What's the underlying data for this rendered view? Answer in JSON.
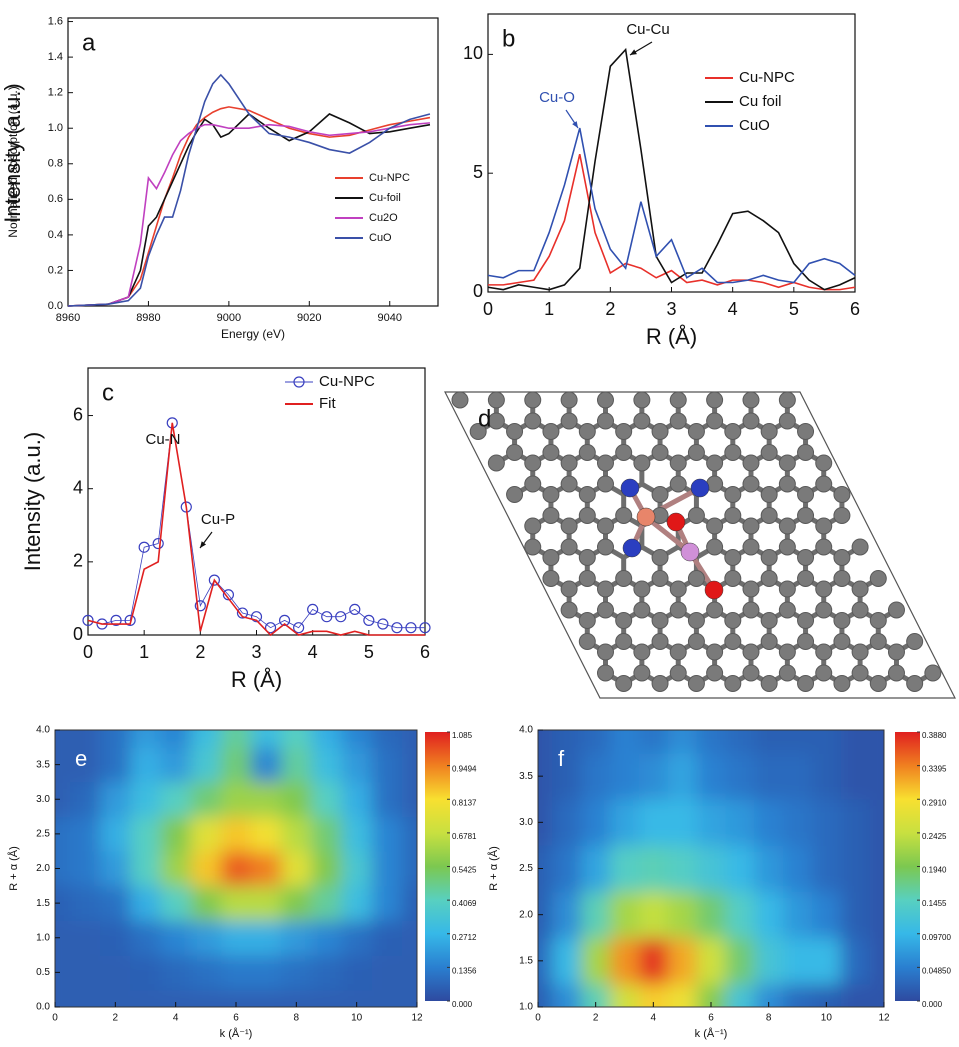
{
  "chart_data": [
    {
      "type": "line",
      "panel_label": "a",
      "x_label": "Energy (eV)",
      "y_label": "Normalized absorption (a.u.)",
      "x": [
        8960,
        8970,
        8975,
        8978,
        8980,
        8982,
        8984,
        8986,
        8988,
        8990,
        8992,
        8994,
        8996,
        8998,
        9000,
        9005,
        9010,
        9015,
        9020,
        9025,
        9030,
        9035,
        9040,
        9045,
        9050
      ],
      "series": [
        {
          "name": "Cu-NPC",
          "color": "#e8402e",
          "values": [
            0,
            0.01,
            0.05,
            0.15,
            0.3,
            0.45,
            0.6,
            0.72,
            0.85,
            0.95,
            1.02,
            1.06,
            1.09,
            1.11,
            1.12,
            1.1,
            1.05,
            1.0,
            0.97,
            0.95,
            0.96,
            0.99,
            1.02,
            1.04,
            1.06
          ]
        },
        {
          "name": "Cu-foil",
          "color": "#111111",
          "values": [
            0,
            0.01,
            0.05,
            0.2,
            0.45,
            0.5,
            0.6,
            0.7,
            0.8,
            0.9,
            0.98,
            1.05,
            1.02,
            0.95,
            0.97,
            1.08,
            1.0,
            0.93,
            0.98,
            1.08,
            1.03,
            0.97,
            0.98,
            1.0,
            1.02
          ]
        },
        {
          "name": "Cu2O",
          "color": "#c040c0",
          "values": [
            0,
            0.01,
            0.05,
            0.35,
            0.72,
            0.66,
            0.75,
            0.85,
            0.93,
            0.97,
            1.0,
            1.02,
            1.02,
            1.01,
            1.0,
            1.0,
            1.02,
            1.01,
            0.98,
            0.96,
            0.97,
            0.98,
            1.0,
            1.02,
            1.03
          ]
        },
        {
          "name": "CuO",
          "color": "#3a50a8",
          "values": [
            0,
            0.01,
            0.03,
            0.1,
            0.28,
            0.4,
            0.5,
            0.5,
            0.65,
            0.85,
            1.0,
            1.15,
            1.25,
            1.3,
            1.25,
            1.08,
            0.97,
            0.95,
            0.92,
            0.88,
            0.86,
            0.92,
            1.0,
            1.05,
            1.08
          ]
        }
      ],
      "xlim": [
        8960,
        9052
      ],
      "xticks": [
        8960,
        8980,
        9000,
        9020,
        9040
      ],
      "ylim": [
        0,
        1.62
      ],
      "yticks": [
        {
          "value": 0,
          "label": "0.0"
        },
        {
          "value": 0.2,
          "label": "0.2"
        },
        {
          "value": 0.4,
          "label": "0.4"
        },
        {
          "value": 0.6,
          "label": "0.6"
        },
        {
          "value": 0.8,
          "label": "0.8"
        },
        {
          "value": 1,
          "label": "1.0"
        },
        {
          "value": 1.2,
          "label": "1.2"
        },
        {
          "value": 1.4,
          "label": "1.4"
        },
        {
          "value": 1.6,
          "label": "1.6"
        }
      ]
    },
    {
      "type": "line",
      "panel_label": "b",
      "x_label": "R (Å)",
      "y_label": "Intensity (a.u.)",
      "x": [
        0,
        0.25,
        0.5,
        0.75,
        1,
        1.25,
        1.5,
        1.75,
        2,
        2.25,
        2.5,
        2.75,
        3,
        3.25,
        3.5,
        3.75,
        4,
        4.25,
        4.5,
        4.75,
        5,
        5.25,
        5.5,
        5.75,
        6
      ],
      "series": [
        {
          "name": "Cu-NPC",
          "color": "#e8302a",
          "values": [
            0.3,
            0.3,
            0.4,
            0.5,
            1.5,
            3,
            5.8,
            2.5,
            0.8,
            1.2,
            1.0,
            0.6,
            0.9,
            0.4,
            0.5,
            0.3,
            0.5,
            0.5,
            0.4,
            0.2,
            0.4,
            0.2,
            0.1,
            0.1,
            0.2
          ]
        },
        {
          "name": "Cu foil",
          "color": "#111111",
          "values": [
            0.2,
            0.1,
            0.3,
            0.2,
            0.1,
            0.3,
            1.0,
            5.5,
            9.5,
            10.2,
            6,
            1.5,
            0.4,
            0.8,
            0.8,
            2.0,
            3.3,
            3.4,
            3.0,
            2.5,
            1.2,
            0.5,
            0.1,
            0.3,
            0.6
          ]
        },
        {
          "name": "CuO",
          "color": "#3050b0",
          "values": [
            0.7,
            0.6,
            0.9,
            0.9,
            2.5,
            4.5,
            6.9,
            3.5,
            1.8,
            1.0,
            3.8,
            1.5,
            2.2,
            0.6,
            1.0,
            0.4,
            0.4,
            0.5,
            0.7,
            0.5,
            0.4,
            1.2,
            1.4,
            1.2,
            0.7
          ]
        }
      ],
      "annotations": [
        "Cu-Cu",
        "Cu-O"
      ],
      "xlim": [
        0,
        6
      ],
      "xticks": [
        0,
        1,
        2,
        3,
        4,
        5,
        6
      ],
      "ylim": [
        0,
        11.7
      ],
      "yticks": [
        0,
        5,
        10
      ]
    },
    {
      "type": "line",
      "panel_label": "c",
      "x_label": "R (Å)",
      "y_label": "Intensity (a.u.)",
      "x": [
        0,
        0.25,
        0.5,
        0.75,
        1,
        1.25,
        1.5,
        1.75,
        2,
        2.25,
        2.5,
        2.75,
        3,
        3.25,
        3.5,
        3.75,
        4,
        4.25,
        4.5,
        4.75,
        5,
        5.25,
        5.5,
        5.75,
        6
      ],
      "series": [
        {
          "name": "Cu-NPC",
          "color": "#3a40c0",
          "marker": "circle",
          "values": [
            0.4,
            0.3,
            0.4,
            0.4,
            2.4,
            2.5,
            5.8,
            3.5,
            0.8,
            1.5,
            1.1,
            0.6,
            0.5,
            0.2,
            0.4,
            0.2,
            0.7,
            0.5,
            0.5,
            0.7,
            0.4,
            0.3,
            0.2,
            0.2,
            0.2
          ]
        },
        {
          "name": "Fit",
          "color": "#e02020",
          "values": [
            0.4,
            0.3,
            0.3,
            0.3,
            1.8,
            2.0,
            5.8,
            3.5,
            0.1,
            1.5,
            1.0,
            0.5,
            0.4,
            0.0,
            0.3,
            0.0,
            0.1,
            0.1,
            0.0,
            0.1,
            0.0,
            0.0,
            0.0,
            0.0,
            0.0
          ]
        }
      ],
      "annotations": [
        "Cu-N",
        "Cu-P"
      ],
      "xlim": [
        0,
        6
      ],
      "xticks": [
        0,
        1,
        2,
        3,
        4,
        5,
        6
      ],
      "ylim": [
        0,
        7.3
      ],
      "yticks": [
        0,
        2,
        4,
        6
      ]
    },
    {
      "type": "diagram",
      "panel_label": "d"
    },
    {
      "type": "contour",
      "panel_label": "e",
      "x_label": "k (Å⁻¹)",
      "y_label": "R + α (Å)",
      "x": [
        0,
        1,
        2,
        3,
        4,
        5,
        6,
        7,
        8,
        9,
        10,
        11,
        12
      ],
      "y": [
        0,
        0.5,
        1,
        1.5,
        2,
        2.5,
        3,
        3.5,
        4
      ],
      "z": [
        [
          0.05,
          0.05,
          0.05,
          0.05,
          0.05,
          0.05,
          0.05,
          0.05,
          0.05,
          0.05,
          0.05,
          0.05,
          0.05
        ],
        [
          0.05,
          0.05,
          0.05,
          0.06,
          0.08,
          0.1,
          0.12,
          0.12,
          0.1,
          0.08,
          0.06,
          0.05,
          0.05
        ],
        [
          0.05,
          0.05,
          0.06,
          0.1,
          0.15,
          0.2,
          0.25,
          0.25,
          0.2,
          0.15,
          0.1,
          0.06,
          0.05
        ],
        [
          0.06,
          0.08,
          0.1,
          0.25,
          0.4,
          0.55,
          0.65,
          0.65,
          0.55,
          0.45,
          0.3,
          0.15,
          0.06
        ],
        [
          0.1,
          0.12,
          0.2,
          0.4,
          0.6,
          0.85,
          1.0,
          0.95,
          0.75,
          0.55,
          0.35,
          0.15,
          0.08
        ],
        [
          0.1,
          0.12,
          0.25,
          0.4,
          0.55,
          0.75,
          0.85,
          0.8,
          0.65,
          0.5,
          0.3,
          0.15,
          0.08
        ],
        [
          0.05,
          0.08,
          0.2,
          0.3,
          0.4,
          0.5,
          0.6,
          0.6,
          0.55,
          0.4,
          0.25,
          0.1,
          0.05
        ],
        [
          0.05,
          0.05,
          0.1,
          0.25,
          0.2,
          0.35,
          0.5,
          0.15,
          0.45,
          0.3,
          0.2,
          0.1,
          0.05
        ],
        [
          0.05,
          0.05,
          0.1,
          0.2,
          0.15,
          0.3,
          0.45,
          0.3,
          0.4,
          0.25,
          0.15,
          0.08,
          0.05
        ]
      ],
      "xlim": [
        0,
        12
      ],
      "xticks": [
        0,
        2,
        4,
        6,
        8,
        10,
        12
      ],
      "ylim": [
        0,
        4
      ],
      "yticks": [
        {
          "value": 0,
          "label": "0.0"
        },
        0.5,
        {
          "value": 1,
          "label": "1.0"
        },
        1.5,
        {
          "value": 2,
          "label": "2.0"
        },
        2.5,
        {
          "value": 3,
          "label": "3.0"
        },
        3.5,
        {
          "value": 4,
          "label": "4.0"
        }
      ],
      "zlim": [
        0,
        1.085
      ],
      "zticks": [
        {
          "value": 0,
          "label": "0.000"
        },
        0.1356,
        0.2712,
        0.4069,
        0.5425,
        0.6781,
        0.8137,
        0.9494,
        1.085
      ]
    },
    {
      "type": "contour",
      "panel_label": "f",
      "x_label": "k (Å⁻¹)",
      "y_label": "R + α (Å)",
      "x": [
        0,
        1,
        2,
        3,
        4,
        5,
        6,
        7,
        8,
        9,
        10,
        11,
        12
      ],
      "y": [
        1,
        1.5,
        2,
        2.5,
        3,
        3.5,
        4
      ],
      "z": [
        [
          0.02,
          0.06,
          0.15,
          0.25,
          0.3,
          0.28,
          0.2,
          0.12,
          0.06,
          0.03,
          0.02,
          0.01,
          0.01
        ],
        [
          0.03,
          0.1,
          0.22,
          0.33,
          0.38,
          0.32,
          0.25,
          0.18,
          0.12,
          0.1,
          0.1,
          0.03,
          0.01
        ],
        [
          0.02,
          0.06,
          0.15,
          0.22,
          0.24,
          0.22,
          0.18,
          0.14,
          0.1,
          0.07,
          0.05,
          0.02,
          0.01
        ],
        [
          0.02,
          0.04,
          0.08,
          0.14,
          0.15,
          0.14,
          0.12,
          0.1,
          0.07,
          0.05,
          0.03,
          0.02,
          0.01
        ],
        [
          0.01,
          0.03,
          0.05,
          0.08,
          0.1,
          0.1,
          0.08,
          0.07,
          0.05,
          0.04,
          0.03,
          0.02,
          0.01
        ],
        [
          0.01,
          0.02,
          0.04,
          0.05,
          0.06,
          0.08,
          0.05,
          0.04,
          0.03,
          0.03,
          0.02,
          0.01,
          0.01
        ],
        [
          0.01,
          0.02,
          0.03,
          0.05,
          0.04,
          0.06,
          0.04,
          0.03,
          0.02,
          0.02,
          0.02,
          0.01,
          0.01
        ]
      ],
      "xlim": [
        0,
        12
      ],
      "xticks": [
        0,
        2,
        4,
        6,
        8,
        10,
        12
      ],
      "ylim": [
        1,
        4
      ],
      "yticks": [
        {
          "value": 1,
          "label": "1.0"
        },
        1.5,
        {
          "value": 2,
          "label": "2.0"
        },
        2.5,
        {
          "value": 3,
          "label": "3.0"
        },
        3.5,
        {
          "value": 4,
          "label": "4.0"
        }
      ],
      "zlim": [
        0,
        0.388
      ],
      "zticks": [
        {
          "value": 0,
          "label": "0.000"
        },
        {
          "value": 0.0485,
          "label": "0.04850"
        },
        {
          "value": 0.097,
          "label": "0.09700"
        },
        0.1455,
        {
          "value": 0.194,
          "label": "0.1940"
        },
        0.2425,
        {
          "value": 0.291,
          "label": "0.2910"
        },
        0.3395,
        {
          "value": 0.388,
          "label": "0.3880"
        }
      ]
    }
  ]
}
